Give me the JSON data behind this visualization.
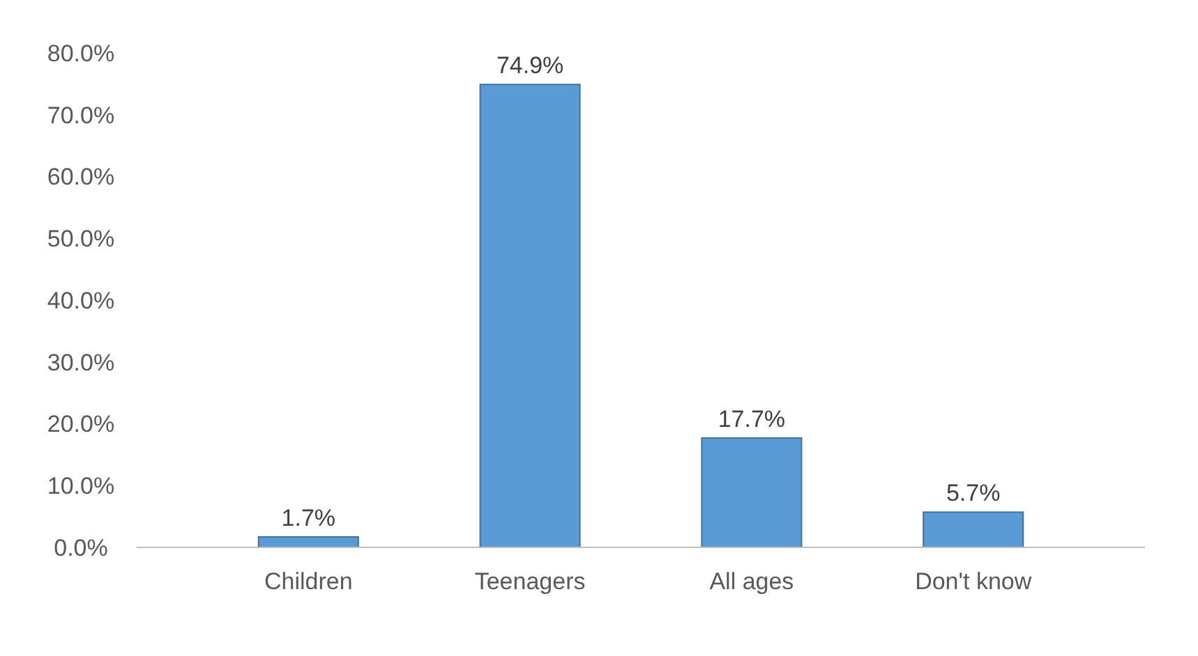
{
  "chart_data": {
    "type": "bar",
    "categories": [
      "Children",
      "Teenagers",
      "All ages",
      "Don't know"
    ],
    "values": [
      1.7,
      74.9,
      17.7,
      5.7
    ],
    "color": "#5b9bd5",
    "value_labels": [
      "1.7%",
      "74.9%",
      "17.7%",
      "5.7%"
    ],
    "ylim": [
      0,
      80
    ],
    "yticks": [
      {
        "value": 0,
        "label": "0.0%"
      },
      {
        "value": 10,
        "label": "10.0%"
      },
      {
        "value": 20,
        "label": "20.0%"
      },
      {
        "value": 30,
        "label": "30.0%"
      },
      {
        "value": 40,
        "label": "40.0%"
      },
      {
        "value": 50,
        "label": "50.0%"
      },
      {
        "value": 60,
        "label": "60.0%"
      },
      {
        "value": 70,
        "label": "70.0%"
      },
      {
        "value": 80,
        "label": "80.0%"
      }
    ],
    "grid": false
  }
}
